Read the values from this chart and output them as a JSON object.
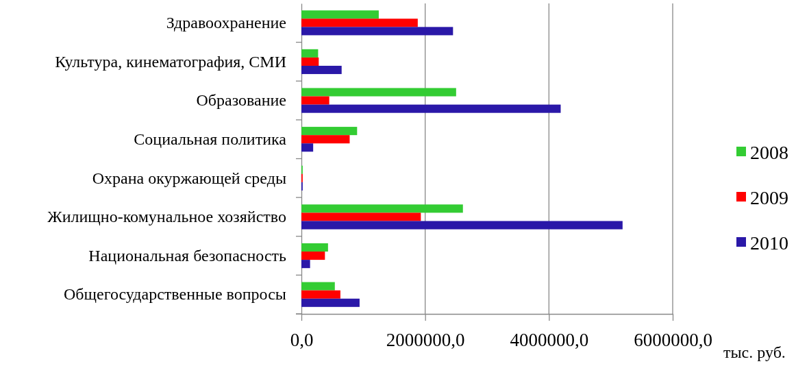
{
  "chart_data": {
    "type": "bar",
    "orientation": "horizontal",
    "xlabel": "тыс. руб.",
    "categories": [
      "Здравоохранение",
      "Культура, кинематография, СМИ",
      "Образование",
      "Социальная политика",
      "Охрана окуржающей среды",
      "Жилищно-комунальное хозяйство",
      "Национальная безопасность",
      "Общегосударственные вопросы"
    ],
    "series": [
      {
        "name": "2008",
        "color": "#33cc33",
        "values": [
          1250000,
          270000,
          2500000,
          900000,
          20000,
          2610000,
          430000,
          540000
        ]
      },
      {
        "name": "2009",
        "color": "#ff0000",
        "values": [
          1880000,
          280000,
          450000,
          780000,
          20000,
          1930000,
          380000,
          630000
        ]
      },
      {
        "name": "2010",
        "color": "#2a18a8",
        "values": [
          2450000,
          650000,
          4190000,
          190000,
          20000,
          5190000,
          140000,
          940000
        ]
      }
    ],
    "xlim": [
      0,
      6000000
    ],
    "xticks": [
      {
        "value": 0,
        "label": "0,0"
      },
      {
        "value": 2000000,
        "label": "2000000,0"
      },
      {
        "value": 4000000,
        "label": "4000000,0"
      },
      {
        "value": 6000000,
        "label": "6000000,0"
      }
    ],
    "grid": "x",
    "legend": "right"
  }
}
